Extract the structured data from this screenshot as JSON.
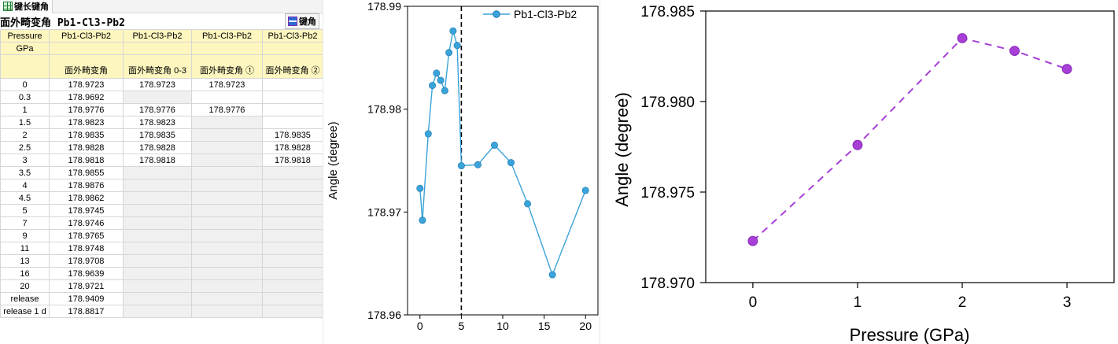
{
  "worksheet": {
    "tab_label": "键长键角",
    "title": "面外畸变角 Pb1-Cl3-Pb2",
    "pane_button": "键角",
    "header": {
      "long_names": [
        "Pressure",
        "Pb1-Cl3-Pb2",
        "Pb1-Cl3-Pb2",
        "Pb1-Cl3-Pb2",
        "Pb1-Cl3-Pb2"
      ],
      "units": [
        "GPa",
        "",
        "",
        "",
        ""
      ],
      "comments": [
        "",
        "面外畸变角",
        "面外畸变角 0-3",
        "面外畸变角 ①",
        "面外畸变角 ②"
      ]
    },
    "rows": [
      [
        "0",
        "178.9723",
        "178.9723",
        "178.9723",
        ""
      ],
      [
        "0.3",
        "178.9692",
        "",
        "",
        ""
      ],
      [
        "1",
        "178.9776",
        "178.9776",
        "178.9776",
        ""
      ],
      [
        "1.5",
        "178.9823",
        "178.9823",
        "",
        ""
      ],
      [
        "2",
        "178.9835",
        "178.9835",
        "",
        "178.9835"
      ],
      [
        "2.5",
        "178.9828",
        "178.9828",
        "",
        "178.9828"
      ],
      [
        "3",
        "178.9818",
        "178.9818",
        "",
        "178.9818"
      ],
      [
        "3.5",
        "178.9855",
        "",
        "",
        ""
      ],
      [
        "4",
        "178.9876",
        "",
        "",
        ""
      ],
      [
        "4.5",
        "178.9862",
        "",
        "",
        ""
      ],
      [
        "5",
        "178.9745",
        "",
        "",
        ""
      ],
      [
        "7",
        "178.9746",
        "",
        "",
        ""
      ],
      [
        "9",
        "178.9765",
        "",
        "",
        ""
      ],
      [
        "11",
        "178.9748",
        "",
        "",
        ""
      ],
      [
        "13",
        "178.9708",
        "",
        "",
        ""
      ],
      [
        "16",
        "178.9639",
        "",
        "",
        ""
      ],
      [
        "20",
        "178.9721",
        "",
        "",
        ""
      ],
      [
        "release",
        "178.9409",
        "",
        "",
        ""
      ],
      [
        "release 1 d",
        "178.8817",
        "",
        "",
        ""
      ]
    ]
  },
  "chart_data": [
    {
      "type": "line",
      "title": "",
      "xlabel": "",
      "ylabel": "Angle (degree)",
      "xlim": [
        -1.5,
        21.5
      ],
      "ylim": [
        178.96,
        178.99
      ],
      "xticks": [
        0,
        5,
        10,
        15,
        20
      ],
      "yticks": [
        178.96,
        178.97,
        178.98,
        178.99
      ],
      "ytick_labels": [
        "178.96",
        "178.97",
        "178.98",
        "178.99"
      ],
      "legend_position": "top-right",
      "vline_x": 5,
      "color": "#3aa3d9",
      "series": [
        {
          "name": "Pb1-Cl3-Pb2",
          "x": [
            0,
            0.3,
            1,
            1.5,
            2,
            2.5,
            3,
            3.5,
            4,
            4.5,
            5,
            7,
            9,
            11,
            13,
            16,
            20
          ],
          "y": [
            178.9723,
            178.9692,
            178.9776,
            178.9823,
            178.9835,
            178.9828,
            178.9818,
            178.9855,
            178.9876,
            178.9862,
            178.9745,
            178.9746,
            178.9765,
            178.9748,
            178.9708,
            178.9639,
            178.9721
          ]
        }
      ]
    },
    {
      "type": "line",
      "title": "",
      "xlabel": "Pressure (GPa)",
      "ylabel": "Angle (degree)",
      "xlim": [
        -0.45,
        3.45
      ],
      "ylim": [
        178.97,
        178.985
      ],
      "xticks": [
        0,
        1,
        2,
        3
      ],
      "yticks": [
        178.97,
        178.975,
        178.98,
        178.985
      ],
      "ytick_labels": [
        "178.970",
        "178.975",
        "178.980",
        "178.985"
      ],
      "line_style": "dashed",
      "color": "#a83fd6",
      "series": [
        {
          "x": [
            0,
            1,
            2,
            2.5,
            3
          ],
          "y": [
            178.9723,
            178.9776,
            178.9835,
            178.9828,
            178.9818
          ]
        }
      ]
    }
  ]
}
